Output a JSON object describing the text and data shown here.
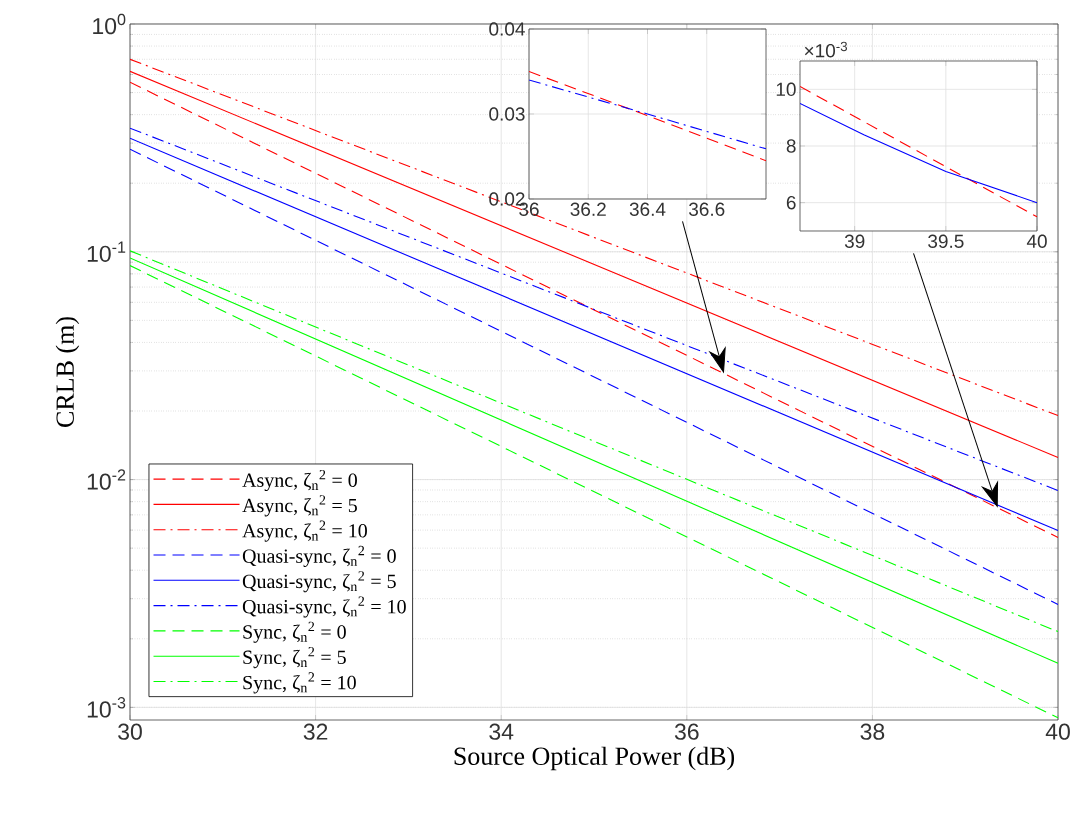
{
  "chart_data": [
    {
      "type": "line",
      "xlabel": "Source Optical Power (dB)",
      "ylabel": "CRLB (m)",
      "log": "y",
      "grid": true,
      "legend": "bottom left",
      "xlim": [
        30,
        40
      ],
      "ylim": [
        0.00088,
        1
      ],
      "xticks": [
        30,
        32,
        34,
        36,
        38,
        40
      ],
      "yticks": [
        {
          "value": 0.001,
          "label": "10$^{-3}$"
        },
        {
          "value": 0.01,
          "label": "10$^{-2}$"
        },
        {
          "value": 0.1,
          "label": "10$^{-1}$"
        },
        {
          "value": 1,
          "label": "10$^{0}$"
        }
      ],
      "x": [
        30,
        40
      ],
      "series": [
        {
          "name": "Async, ζ$_{n}$$^{2}$ = 0",
          "color": "#ff0000",
          "line_style": "dashed",
          "values": [
            0.555,
            0.00557
          ]
        },
        {
          "name": "Async, ζ$_{n}$$^{2}$ = 5",
          "color": "#ff0000",
          "line_style": "solid",
          "values": [
            0.62,
            0.0125
          ]
        },
        {
          "name": "Async, ζ$_{n}$$^{2}$ = 10",
          "color": "#ff0000",
          "line_style": "dashdot",
          "values": [
            0.7,
            0.0191
          ]
        },
        {
          "name": "Quasi-sync, ζ$_{n}$$^{2}$ = 0",
          "color": "#0000ff",
          "line_style": "dashed",
          "values": [
            0.282,
            0.00283
          ]
        },
        {
          "name": "Quasi-sync, ζ$_{n}$$^{2}$ = 5",
          "color": "#0000ff",
          "line_style": "solid",
          "values": [
            0.315,
            0.00597
          ]
        },
        {
          "name": "Quasi-sync, ζ$_{n}$$^{2}$ = 10",
          "color": "#0000ff",
          "line_style": "dashdot",
          "values": [
            0.349,
            0.00895
          ]
        },
        {
          "name": "Sync, ζ$_{n}$$^{2}$ = 0",
          "color": "#00ff00",
          "line_style": "dashed",
          "values": [
            0.087,
            0.0009
          ]
        },
        {
          "name": "Sync, ζ$_{n}$$^{2}$ = 5",
          "color": "#00ff00",
          "line_style": "solid",
          "values": [
            0.094,
            0.00156
          ]
        },
        {
          "name": "Sync, ζ$_{n}$$^{2}$ = 10",
          "color": "#00ff00",
          "line_style": "dashdot",
          "values": [
            0.101,
            0.00215
          ]
        }
      ]
    },
    {
      "type": "line",
      "grid": true,
      "xlim": [
        36,
        36.8
      ],
      "ylim": [
        0.02,
        0.04
      ],
      "xticks": [
        36,
        36.2,
        36.4,
        36.6
      ],
      "yticks": [
        0.02,
        0.03,
        0.04
      ],
      "series": [
        {
          "color": "#ff0000",
          "line_style": "dashed",
          "x": [
            36,
            36.4,
            36.8
          ],
          "values": [
            0.035,
            0.0298,
            0.0245
          ]
        },
        {
          "color": "#0000ff",
          "line_style": "dashdot",
          "x": [
            36,
            36.4,
            36.8
          ],
          "values": [
            0.034,
            0.03,
            0.0259
          ]
        }
      ]
    },
    {
      "type": "line",
      "grid": true,
      "xlim": [
        38.7,
        40
      ],
      "ylim": [
        5,
        11
      ],
      "xticks": [
        39,
        39.5,
        40
      ],
      "yticks": [
        6,
        8,
        10
      ],
      "annotations": [
        "×10$^{-3}$"
      ],
      "series": [
        {
          "color": "#ff0000",
          "line_style": "dashed",
          "x": [
            38.7,
            40
          ],
          "values": [
            10.1,
            5.5
          ]
        },
        {
          "color": "#0000ff",
          "line_style": "solid",
          "x": [
            38.7,
            39.05,
            39.5,
            40
          ],
          "values": [
            9.5,
            8.4,
            7.1,
            6.0
          ]
        }
      ]
    }
  ]
}
